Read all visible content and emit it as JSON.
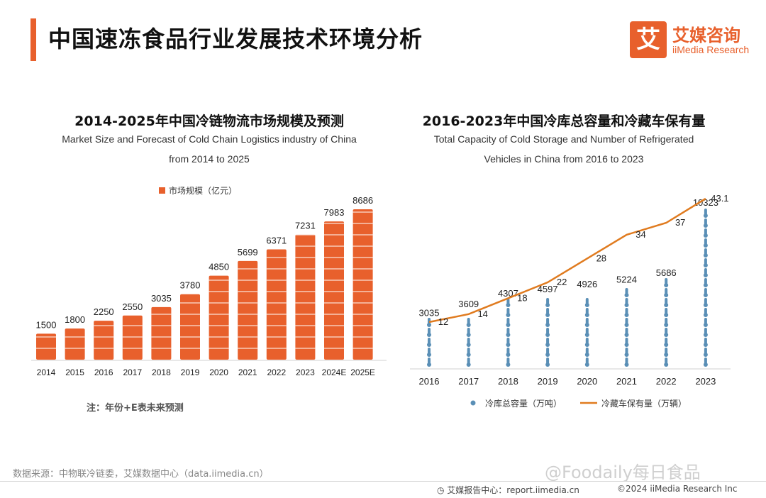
{
  "header": {
    "title": "中国速冻食品行业发展技术环境分析",
    "logo_mark": "艾",
    "logo_cn": "艾媒咨询",
    "logo_en": "iiMedia Research"
  },
  "chart_left": {
    "title_cn": "2014-2025年中国冷链物流市场规模及预测",
    "subtitle_en_1": "Market Size and Forecast of Cold Chain Logistics industry of China",
    "subtitle_en_2": "from 2014 to 2025",
    "note": "注：年份+E表未来预测"
  },
  "chart_right": {
    "title_cn": "2016-2023年中国冷库总容量和冷藏车保有量",
    "subtitle_en_1": "Total Capacity of Cold Storage and Number of Refrigerated",
    "subtitle_en_2": "Vehicles in China from 2016 to 2023"
  },
  "chart_data": [
    {
      "type": "bar",
      "categories": [
        "2014",
        "2015",
        "2016",
        "2017",
        "2018",
        "2019",
        "2020",
        "2021",
        "2022",
        "2023",
        "2024E",
        "2025E"
      ],
      "series": [
        {
          "name": "市场规模（亿元）",
          "values": [
            1500,
            1800,
            2250,
            2550,
            3035,
            3780,
            4850,
            5699,
            6371,
            7231,
            7983,
            8686
          ]
        }
      ],
      "ylim": [
        0,
        9000
      ],
      "legend": "top",
      "colors": {
        "bar": "#e8602c"
      }
    },
    {
      "type": "bar+line",
      "categories": [
        "2016",
        "2017",
        "2018",
        "2019",
        "2020",
        "2021",
        "2022",
        "2023"
      ],
      "series": [
        {
          "name": "冷库总容量（万吨）",
          "kind": "bar",
          "axis": "left",
          "values": [
            3035,
            3609,
            4307,
            4597,
            4926,
            5224,
            5686,
            10323
          ]
        },
        {
          "name": "冷藏车保有量（万辆）",
          "kind": "line",
          "axis": "right",
          "values": [
            12,
            14,
            18,
            22,
            28,
            34,
            37,
            43.1
          ]
        }
      ],
      "ylim_left": [
        0,
        12000
      ],
      "ylim_right": [
        0,
        50
      ],
      "legend": "bottom",
      "colors": {
        "bar": "#5a8fb6",
        "line": "#e07b1f"
      }
    }
  ],
  "footer": {
    "source": "数据来源：中物联冷链委，艾媒数据中心（data.iimedia.cn）",
    "watermark": "@Foodaily每日食品",
    "report": "艾媒报告中心：report.iimedia.cn",
    "copyright": "©2024  iiMedia Research  Inc"
  }
}
